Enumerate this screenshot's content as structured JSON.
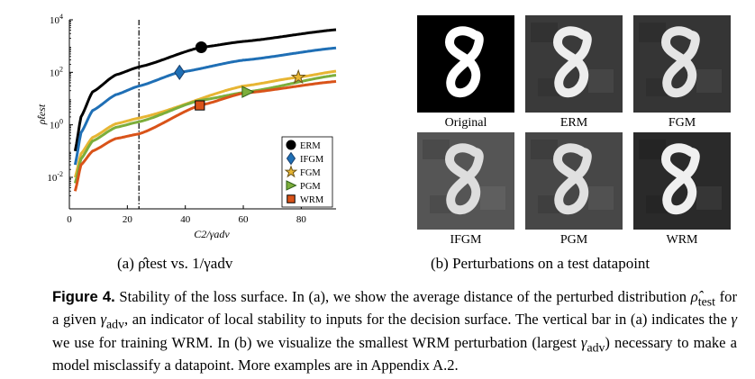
{
  "chart_data": {
    "type": "line",
    "xlabel": "C2/γadv",
    "ylabel": "ρ̂test",
    "xlim": [
      0,
      92
    ],
    "ylim_log10": [
      -3.2,
      4
    ],
    "log_y": true,
    "xticks": [
      "0",
      "20",
      "40",
      "60",
      "80"
    ],
    "yticks": [
      "10-2",
      "100",
      "102",
      "104"
    ],
    "vline_x": 24,
    "legend_position": "bottom-right",
    "series": [
      {
        "name": "ERM",
        "color": "#000000",
        "marker": "circle",
        "marker_x": 45.5,
        "x": [
          2,
          4,
          8,
          16,
          24,
          45.5,
          60,
          92
        ],
        "y": [
          0.1,
          2.0,
          18,
          80,
          160,
          900,
          1500,
          4200
        ]
      },
      {
        "name": "IFGM",
        "color": "#1f6fb5",
        "marker": "diamond",
        "marker_x": 38,
        "x": [
          2,
          4,
          8,
          16,
          24,
          38,
          60,
          92
        ],
        "y": [
          0.03,
          0.5,
          3.5,
          14,
          30,
          100,
          290,
          850
        ]
      },
      {
        "name": "FGM",
        "color": "#e7b533",
        "marker": "star",
        "marker_x": 79,
        "x": [
          2,
          4,
          8,
          16,
          24,
          60,
          79,
          92
        ],
        "y": [
          0.01,
          0.08,
          0.33,
          1.1,
          1.8,
          30,
          65,
          110
        ]
      },
      {
        "name": "PGM",
        "color": "#7cae3b",
        "marker": "triangle",
        "marker_x": 61.5,
        "x": [
          2,
          4,
          8,
          16,
          24,
          45,
          61.5,
          92
        ],
        "y": [
          0.006,
          0.05,
          0.24,
          0.8,
          1.3,
          8.5,
          18,
          78
        ]
      },
      {
        "name": "WRM",
        "color": "#d95319",
        "marker": "square",
        "marker_x": 45,
        "x": [
          2,
          4,
          8,
          16,
          24,
          45,
          60,
          92
        ],
        "y": [
          0.003,
          0.03,
          0.1,
          0.3,
          0.45,
          5.5,
          16,
          45
        ]
      }
    ]
  },
  "subcaption_a": "(a) ρ̂test vs. 1/γadv",
  "subcaption_b": "(b) Perturbations on a test datapoint",
  "tiles": [
    {
      "label": "Original",
      "bg": "#000000",
      "stroke": "#ffffff"
    },
    {
      "label": "ERM",
      "bg": "#3a3a3a",
      "stroke": "#ededed"
    },
    {
      "label": "FGM",
      "bg": "#353535",
      "stroke": "#e5e5e5"
    },
    {
      "label": "IFGM",
      "bg": "#555555",
      "stroke": "#dddddd"
    },
    {
      "label": "PGM",
      "bg": "#474747",
      "stroke": "#e0e0e0"
    },
    {
      "label": "WRM",
      "bg": "#2a2a2a",
      "stroke": "#f0f0f0"
    }
  ],
  "caption": {
    "label": "Figure 4.",
    "s1": " Stability of the loss surface. In (a), we show the average distance of the perturbed distribution ",
    "rho": "ρ̂",
    "rho_sub": "test",
    "s2": " for a given ",
    "gamma": "γ",
    "gamma_sub": "adv",
    "s3": ", an indicator of local stability to inputs for the decision surface. The vertical bar in (a) indicates the ",
    "gamma2": "γ",
    "s4": " we use for training WRM. In (b) we visualize the smallest WRM perturbation (largest ",
    "gamma3": "γ",
    "gamma3_sub": "adv",
    "s5": ") necessary to make a model misclassify a datapoint. More examples are in Appendix A.2."
  }
}
